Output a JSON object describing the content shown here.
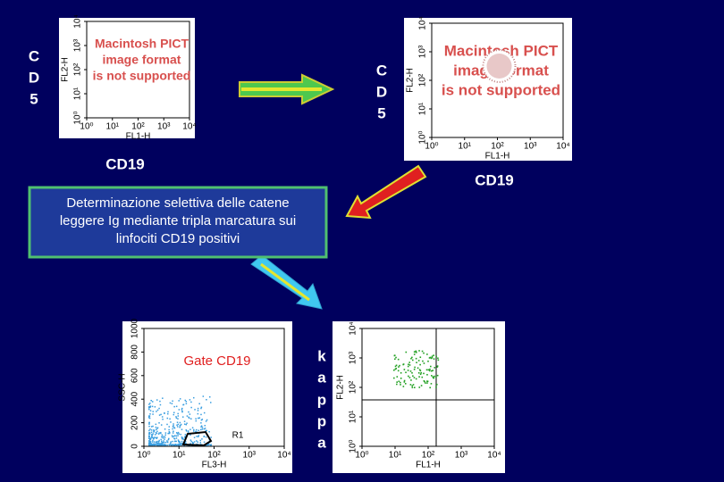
{
  "left_marker": [
    "C",
    "D",
    "5"
  ],
  "left_caption": "CD19",
  "right_marker": [
    "C",
    "D",
    "5"
  ],
  "right_caption": "CD19",
  "note": [
    "Determinazione selettiva delle  catene",
    "leggere Ig mediante tripla marcatura sui",
    "linfociti CD19 positivi"
  ],
  "kappa_marker": [
    "k",
    "a",
    "p",
    "p",
    "a"
  ],
  "panels": [
    {
      "y_label": "FL2-H",
      "x_label": "FL1-H",
      "x_ticks": [
        "10⁰",
        "10¹",
        "10²",
        "10³",
        "10⁴"
      ],
      "y_ticks": [
        "10⁰",
        "10¹",
        "10²",
        "10³",
        "10⁴"
      ],
      "placeholder": [
        "Macintosh PICT",
        "image format",
        "is not supported"
      ]
    },
    {
      "y_label": "FL2-H",
      "x_label": "FL1-H",
      "x_ticks": [
        "10⁰",
        "10¹",
        "10²",
        "10³",
        "10⁴"
      ],
      "y_ticks": [
        "10⁰",
        "10¹",
        "10²",
        "10³",
        "10⁴"
      ],
      "placeholder": [
        "Macintosh PICT",
        "image format",
        "is not supported"
      ]
    },
    {
      "y_label": "SSC-H",
      "x_label": "FL3-H",
      "x_ticks": [
        "10⁰",
        "10¹",
        "10²",
        "10³",
        "10⁴"
      ],
      "y_ticks": [
        0,
        200,
        400,
        600,
        800,
        1000
      ],
      "gate": "Gate CD19",
      "region": "R1"
    },
    {
      "y_label": "FL2-H",
      "x_label": "FL1-H",
      "x_ticks": [
        "10⁰",
        "10¹",
        "10²",
        "10³",
        "10⁴"
      ],
      "y_ticks": [
        "10⁰",
        "10¹",
        "10²",
        "10³",
        "10⁴"
      ]
    }
  ]
}
